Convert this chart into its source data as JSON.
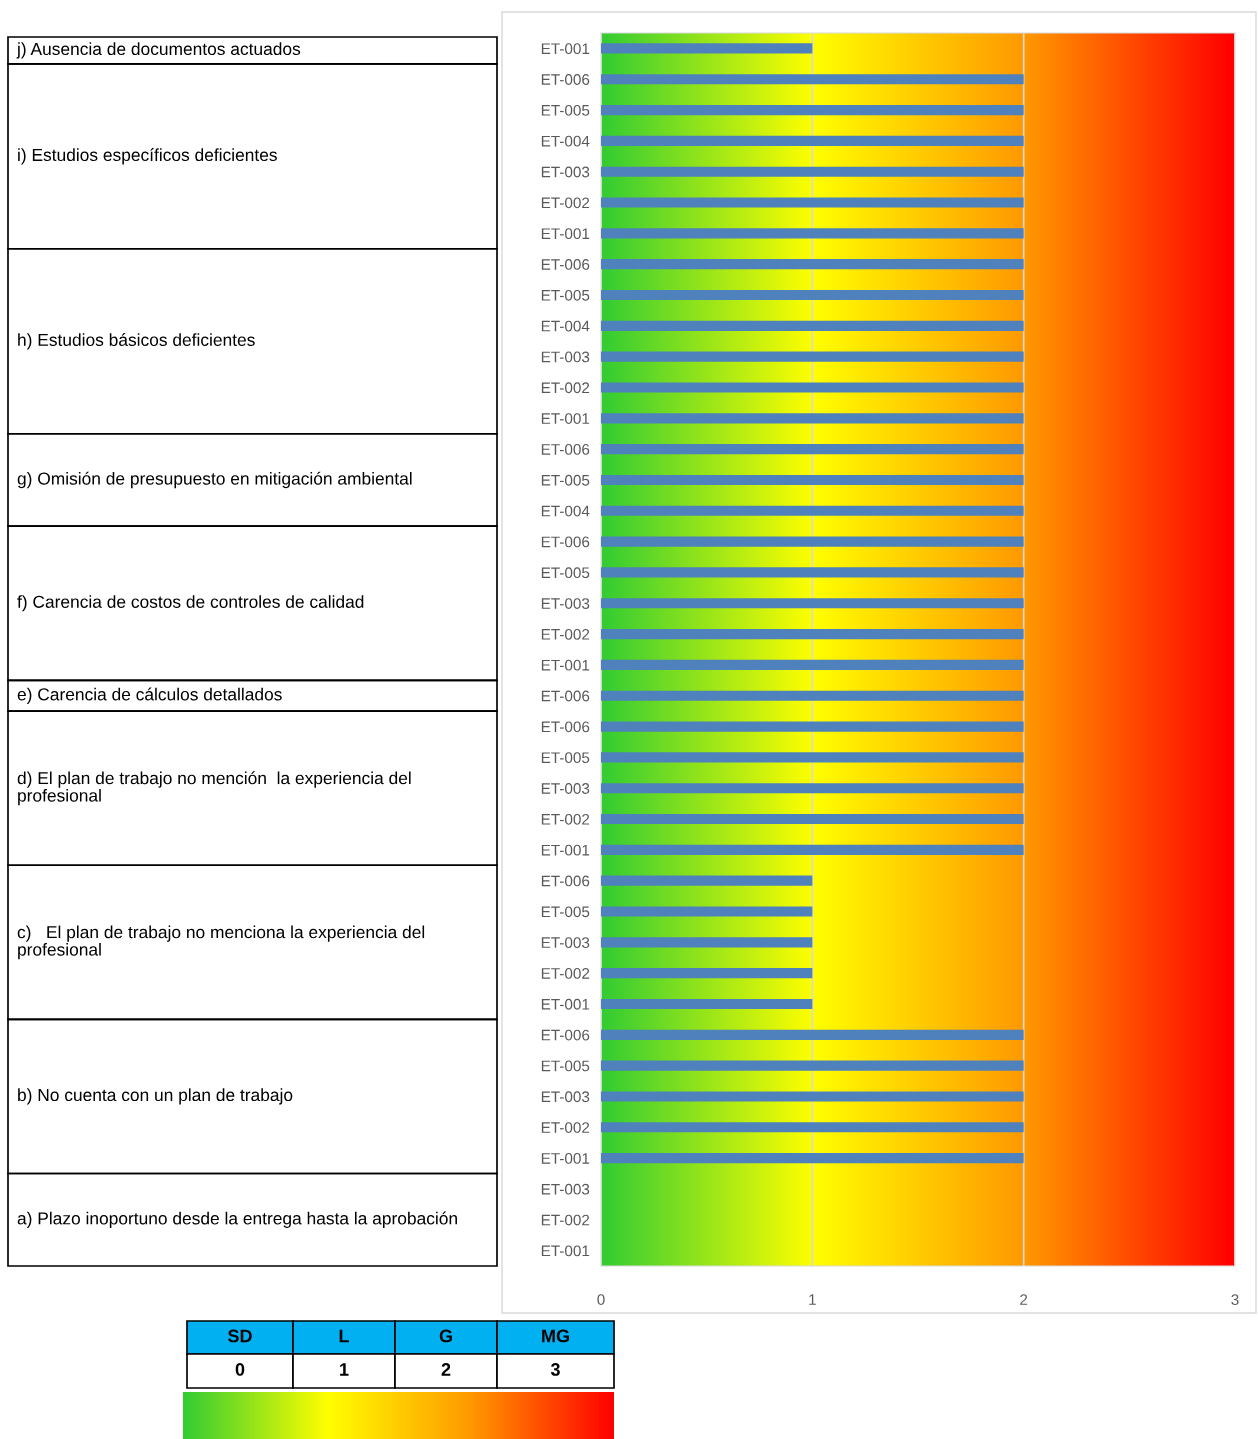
{
  "chart_data": {
    "type": "bar",
    "orientation": "horizontal",
    "categories": [
      "ET-001",
      "ET-006",
      "ET-005",
      "ET-004",
      "ET-003",
      "ET-002",
      "ET-001",
      "ET-006",
      "ET-005",
      "ET-004",
      "ET-003",
      "ET-002",
      "ET-001",
      "ET-006",
      "ET-005",
      "ET-004",
      "ET-006",
      "ET-005",
      "ET-003",
      "ET-002",
      "ET-001",
      "ET-006",
      "ET-006",
      "ET-005",
      "ET-003",
      "ET-002",
      "ET-001",
      "ET-006",
      "ET-005",
      "ET-003",
      "ET-002",
      "ET-001",
      "ET-006",
      "ET-005",
      "ET-003",
      "ET-002",
      "ET-001",
      "ET-003",
      "ET-002",
      "ET-001"
    ],
    "values": [
      1,
      2,
      2,
      2,
      2,
      2,
      2,
      2,
      2,
      2,
      2,
      2,
      2,
      2,
      2,
      2,
      2,
      2,
      2,
      2,
      2,
      2,
      2,
      2,
      2,
      2,
      2,
      1,
      1,
      1,
      1,
      1,
      2,
      2,
      2,
      2,
      2,
      0,
      0,
      0
    ],
    "color": "#4f81bd",
    "xlim": [
      0,
      3
    ],
    "xticks": [
      0,
      1,
      2,
      3
    ],
    "grid": "x",
    "annotations": [
      "j) Ausencia de documentos actuados",
      "i) Estudios específicos deficientes",
      "h) Estudios básicos deficientes",
      "g) Omisión de presupuesto en mitigación ambiental",
      "f) Carencia de costos de controles de calidad",
      "e) Carencia de cálculos detallados",
      "d) El plan de trabajo no mención  la experiencia del profesional",
      "c)   El plan de trabajo no menciona la experiencia del profesional",
      "b) No cuenta con un plan de trabajo",
      "a) Plazo inoportuno desde la entrega hasta la aprobación",
      "SD",
      "L",
      "G",
      "MG",
      "0",
      "1",
      "2",
      "3"
    ]
  }
}
